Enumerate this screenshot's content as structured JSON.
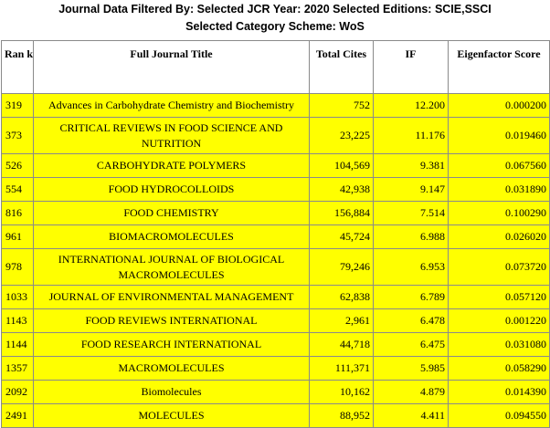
{
  "header": {
    "line1": "Journal Data Filtered By:  Selected JCR Year: 2020 Selected Editions: SCIE,SSCI",
    "line2": "Selected Category Scheme: WoS"
  },
  "columns": {
    "rank": "Ran k",
    "title": "Full Journal Title",
    "cites": "Total Cites",
    "if": "IF",
    "eigen": "Eigenfactor Score"
  },
  "rows": [
    {
      "rank": "319",
      "title": "Advances in Carbohydrate Chemistry and Biochemistry",
      "cites": "752",
      "if": "12.200",
      "eigen": "0.000200"
    },
    {
      "rank": "373",
      "title": "CRITICAL REVIEWS IN FOOD SCIENCE AND NUTRITION",
      "cites": "23,225",
      "if": "11.176",
      "eigen": "0.019460"
    },
    {
      "rank": "526",
      "title": "CARBOHYDRATE POLYMERS",
      "cites": "104,569",
      "if": "9.381",
      "eigen": "0.067560"
    },
    {
      "rank": "554",
      "title": "FOOD HYDROCOLLOIDS",
      "cites": "42,938",
      "if": "9.147",
      "eigen": "0.031890"
    },
    {
      "rank": "816",
      "title": "FOOD CHEMISTRY",
      "cites": "156,884",
      "if": "7.514",
      "eigen": "0.100290"
    },
    {
      "rank": "961",
      "title": "BIOMACROMOLECULES",
      "cites": "45,724",
      "if": "6.988",
      "eigen": "0.026020"
    },
    {
      "rank": "978",
      "title": "INTERNATIONAL JOURNAL OF BIOLOGICAL MACROMOLECULES",
      "cites": "79,246",
      "if": "6.953",
      "eigen": "0.073720"
    },
    {
      "rank": "1033",
      "title": "JOURNAL OF ENVIRONMENTAL MANAGEMENT",
      "cites": "62,838",
      "if": "6.789",
      "eigen": "0.057120"
    },
    {
      "rank": "1143",
      "title": "FOOD REVIEWS INTERNATIONAL",
      "cites": "2,961",
      "if": "6.478",
      "eigen": "0.001220"
    },
    {
      "rank": "1144",
      "title": "FOOD RESEARCH INTERNATIONAL",
      "cites": "44,718",
      "if": "6.475",
      "eigen": "0.031080"
    },
    {
      "rank": "1357",
      "title": "MACROMOLECULES",
      "cites": "111,371",
      "if": "5.985",
      "eigen": "0.058290"
    },
    {
      "rank": "2092",
      "title": "Biomolecules",
      "cites": "10,162",
      "if": "4.879",
      "eigen": "0.014390"
    },
    {
      "rank": "2491",
      "title": "MOLECULES",
      "cites": "88,952",
      "if": "4.411",
      "eigen": "0.094550"
    }
  ]
}
